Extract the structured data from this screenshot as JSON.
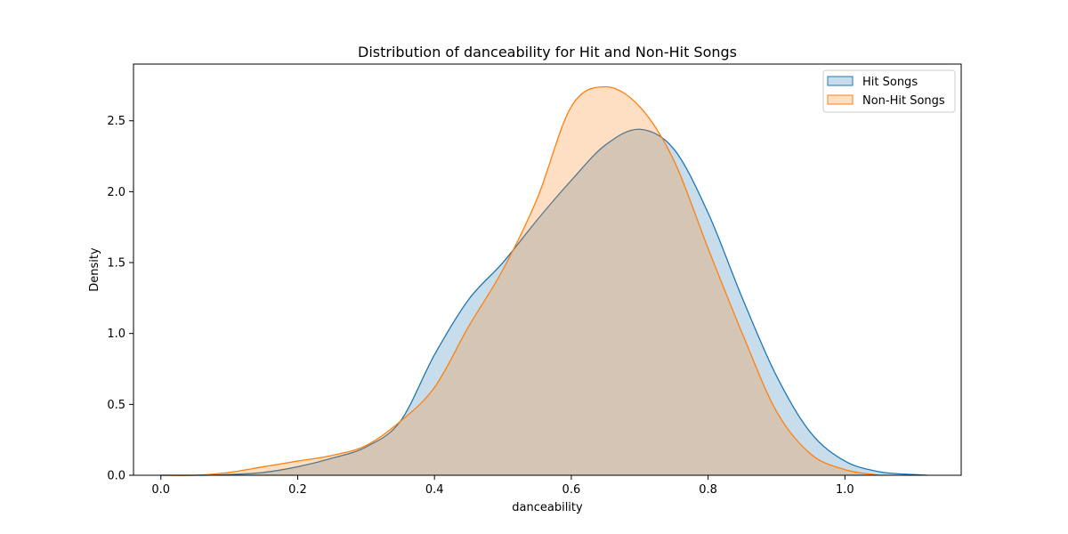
{
  "chart_data": {
    "type": "area",
    "title": "Distribution of danceability for Hit and Non-Hit Songs",
    "xlabel": "danceability",
    "ylabel": "Density",
    "xlim": [
      -0.04,
      1.17
    ],
    "ylim": [
      0,
      2.9
    ],
    "xticks": [
      0.0,
      0.2,
      0.4,
      0.6,
      0.8,
      1.0
    ],
    "xtick_labels": [
      "0.0",
      "0.2",
      "0.4",
      "0.6",
      "0.8",
      "1.0"
    ],
    "yticks": [
      0.0,
      0.5,
      1.0,
      1.5,
      2.0,
      2.5
    ],
    "ytick_labels": [
      "0.0",
      "0.5",
      "1.0",
      "1.5",
      "2.0",
      "2.5"
    ],
    "grid": false,
    "legend_position": "top-right",
    "series": [
      {
        "name": "Hit Songs",
        "line_color": "#1f77b4",
        "fill_color": "#1f77b4",
        "fill_opacity": 0.25,
        "x": [
          0.0,
          0.05,
          0.1,
          0.15,
          0.2,
          0.25,
          0.3,
          0.35,
          0.4,
          0.45,
          0.5,
          0.55,
          0.6,
          0.65,
          0.7,
          0.75,
          0.8,
          0.85,
          0.9,
          0.95,
          1.0,
          1.05,
          1.1,
          1.12
        ],
        "y": [
          0.0,
          0.0,
          0.005,
          0.02,
          0.06,
          0.12,
          0.2,
          0.38,
          0.85,
          1.24,
          1.5,
          1.8,
          2.08,
          2.33,
          2.44,
          2.3,
          1.85,
          1.25,
          0.7,
          0.3,
          0.1,
          0.025,
          0.005,
          0.0
        ]
      },
      {
        "name": "Non-Hit Songs",
        "line_color": "#ff7f0e",
        "fill_color": "#ff7f0e",
        "fill_opacity": 0.25,
        "x": [
          0.0,
          0.05,
          0.1,
          0.15,
          0.2,
          0.25,
          0.3,
          0.35,
          0.4,
          0.45,
          0.5,
          0.55,
          0.6,
          0.65,
          0.7,
          0.75,
          0.8,
          0.85,
          0.9,
          0.95,
          1.0,
          1.05
        ],
        "y": [
          0.0,
          0.0,
          0.02,
          0.06,
          0.1,
          0.14,
          0.21,
          0.38,
          0.62,
          1.05,
          1.45,
          1.95,
          2.6,
          2.74,
          2.6,
          2.22,
          1.6,
          1.0,
          0.45,
          0.15,
          0.04,
          0.0
        ]
      }
    ]
  }
}
